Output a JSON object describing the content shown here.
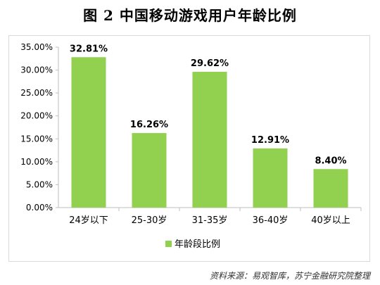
{
  "title": "图 2  中国移动游戏用户年龄比例",
  "source": "资料来源：易观智库，苏宁金融研究院整理",
  "colors": {
    "bar": "#92d050",
    "axis": "#bfbfbf",
    "text": "#000000"
  },
  "chart_data": {
    "type": "bar",
    "categories": [
      "24岁以下",
      "25-30岁",
      "31-35岁",
      "36-40岁",
      "40岁以上"
    ],
    "series": [
      {
        "name": "年龄段比例",
        "values": [
          32.81,
          16.26,
          29.62,
          12.91,
          8.4
        ]
      }
    ],
    "data_labels": [
      "32.81%",
      "16.26%",
      "29.62%",
      "12.91%",
      "8.40%"
    ],
    "ylim": [
      0,
      35
    ],
    "yticks": [
      "0.00%",
      "5.00%",
      "10.00%",
      "15.00%",
      "20.00%",
      "25.00%",
      "30.00%",
      "35.00%"
    ],
    "grid": false,
    "legend": "bottom"
  }
}
